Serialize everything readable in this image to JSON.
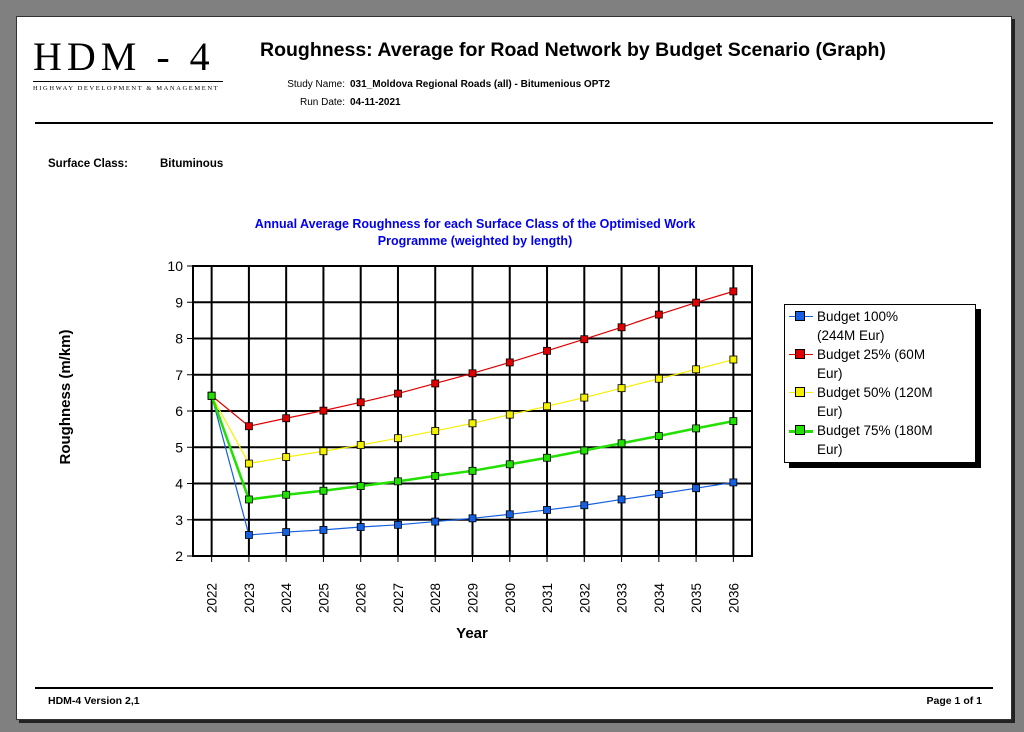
{
  "header": {
    "logo_main": "HDM - 4",
    "logo_sub": "HIGHWAY DEVELOPMENT & MANAGEMENT",
    "title": "Roughness: Average for Road Network by Budget Scenario (Graph)",
    "study_name_label": "Study Name:",
    "study_name_value": "031_Moldova Regional Roads (all) - Bitumenious OPT2",
    "run_date_label": "Run Date:",
    "run_date_value": "04-11-2021"
  },
  "filters": {
    "surface_class_label": "Surface Class:",
    "surface_class_value": "Bituminous"
  },
  "footer": {
    "version": "HDM-4 Version 2,1",
    "page": "Page 1 of 1"
  },
  "chart_data": {
    "type": "line",
    "title_line1": "Annual Average Roughness for each Surface Class of the Optimised Work",
    "title_line2": "Programme (weighted by length)",
    "xlabel": "Year",
    "ylabel": "Roughness (m/km)",
    "ylim": [
      2,
      10
    ],
    "yticks": [
      "2",
      "3",
      "4",
      "5",
      "6",
      "7",
      "8",
      "9",
      "10"
    ],
    "grid": true,
    "legend_position": "right",
    "categories": [
      "2022",
      "2023",
      "2024",
      "2025",
      "2026",
      "2027",
      "2028",
      "2029",
      "2030",
      "2031",
      "2032",
      "2033",
      "2034",
      "2035",
      "2036"
    ],
    "series": [
      {
        "name": "Budget 100% (244M Eur)",
        "legend_line1": "Budget 100%",
        "legend_line2": "(244M Eur)",
        "color": "#1560e0",
        "values": [
          6.42,
          2.58,
          2.66,
          2.72,
          2.8,
          2.86,
          2.95,
          3.04,
          3.15,
          3.27,
          3.4,
          3.56,
          3.71,
          3.87,
          4.03
        ]
      },
      {
        "name": "Budget 25% (60M Eur)",
        "legend_line1": "Budget 25% (60M",
        "legend_line2": "Eur)",
        "color": "#e00000",
        "values": [
          6.42,
          5.58,
          5.8,
          6.01,
          6.24,
          6.48,
          6.76,
          7.04,
          7.34,
          7.66,
          7.98,
          8.31,
          8.66,
          8.99,
          9.3
        ]
      },
      {
        "name": "Budget 50% (120M Eur)",
        "legend_line1": "Budget 50% (120M",
        "legend_line2": "Eur)",
        "color": "#f5f000",
        "values": [
          6.42,
          4.55,
          4.73,
          4.89,
          5.06,
          5.25,
          5.45,
          5.66,
          5.9,
          6.13,
          6.37,
          6.63,
          6.89,
          7.15,
          7.42
        ]
      },
      {
        "name": "Budget 75% (180M Eur)",
        "legend_line1": "Budget 75% (180M",
        "legend_line2": "Eur)",
        "color": "#22e000",
        "values": [
          6.42,
          3.56,
          3.69,
          3.8,
          3.93,
          4.06,
          4.21,
          4.35,
          4.53,
          4.71,
          4.91,
          5.11,
          5.31,
          5.52,
          5.72
        ]
      }
    ]
  }
}
